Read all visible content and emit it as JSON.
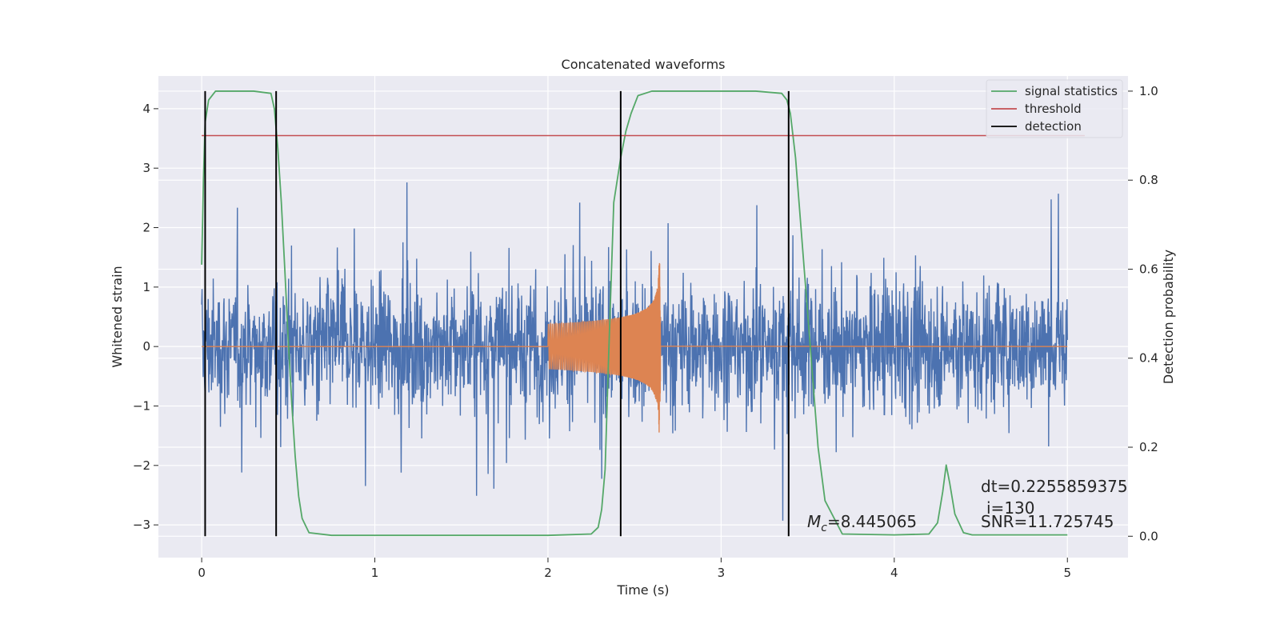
{
  "chart_data": {
    "type": "line",
    "title": "Concatenated waveforms",
    "xlabel": "Time (s)",
    "ylabel": "Whitened strain",
    "y2label": "Detection probability",
    "xlim": [
      -0.25,
      5.35
    ],
    "ylim": [
      -3.55,
      4.55
    ],
    "y2lim": [
      -0.048,
      1.034
    ],
    "xticks": [
      0,
      1,
      2,
      3,
      4,
      5
    ],
    "xtick_labels": [
      "0",
      "1",
      "2",
      "3",
      "4",
      "5"
    ],
    "yticks": [
      -3,
      -2,
      -1,
      0,
      1,
      2,
      3,
      4
    ],
    "ytick_labels": [
      "−3",
      "−2",
      "−1",
      "0",
      "1",
      "2",
      "3",
      "4"
    ],
    "y2ticks": [
      0.0,
      0.2,
      0.4,
      0.6,
      0.8,
      1.0
    ],
    "y2tick_labels": [
      "0.0",
      "0.2",
      "0.4",
      "0.6",
      "0.8",
      "1.0"
    ],
    "grid": true,
    "legend_position": "top-right",
    "series": [
      {
        "name": "whitened strain",
        "color": "#4c72b0",
        "axis": "left",
        "x_range": [
          0,
          5
        ],
        "amplitude": 3.3
      },
      {
        "name": "injected waveform",
        "color": "#dd8452",
        "axis": "left",
        "x_range": [
          2.0,
          2.65
        ]
      },
      {
        "name": "signal statistics",
        "color": "#55a868",
        "axis": "right",
        "x": [
          0,
          0.01,
          0.02,
          0.04,
          0.08,
          0.15,
          0.3,
          0.4,
          0.42,
          0.44,
          0.46,
          0.48,
          0.5,
          0.52,
          0.54,
          0.56,
          0.58,
          0.62,
          0.75,
          1.0,
          1.5,
          2.0,
          2.25,
          2.29,
          2.31,
          2.33,
          2.35,
          2.38,
          2.42,
          2.45,
          2.48,
          2.52,
          2.6,
          3.2,
          3.35,
          3.38,
          3.4,
          3.43,
          3.46,
          3.5,
          3.53,
          3.56,
          3.6,
          3.7,
          4.0,
          4.2,
          4.25,
          4.28,
          4.3,
          4.32,
          4.35,
          4.4,
          4.45,
          5.0
        ],
        "y": [
          0.61,
          0.8,
          0.93,
          0.98,
          1.0,
          1.0,
          1.0,
          0.995,
          0.96,
          0.87,
          0.75,
          0.6,
          0.44,
          0.3,
          0.18,
          0.09,
          0.04,
          0.008,
          0.002,
          0.002,
          0.002,
          0.002,
          0.005,
          0.02,
          0.06,
          0.15,
          0.4,
          0.75,
          0.85,
          0.91,
          0.95,
          0.99,
          1.0,
          1.0,
          0.995,
          0.98,
          0.95,
          0.85,
          0.7,
          0.5,
          0.35,
          0.2,
          0.08,
          0.005,
          0.003,
          0.005,
          0.03,
          0.1,
          0.16,
          0.12,
          0.05,
          0.008,
          0.003,
          0.003
        ]
      },
      {
        "name": "threshold",
        "color": "#c44e52",
        "axis": "right",
        "x": [
          0,
          5.1
        ],
        "y": [
          0.9,
          0.9
        ]
      },
      {
        "name": "detection",
        "color": "#000000",
        "axis": "right",
        "x_positions": [
          0.02,
          0.43,
          2.42,
          3.39
        ],
        "y_range": [
          0,
          1
        ]
      }
    ],
    "legend": [
      {
        "label": "signal statistics",
        "color": "#55a868"
      },
      {
        "label": "threshold",
        "color": "#c44e52"
      },
      {
        "label": "detection",
        "color": "#000000"
      }
    ],
    "annotations": [
      {
        "id": "mc",
        "prefix": "M",
        "sub": "c",
        "text": "=8.445065"
      },
      {
        "id": "dt",
        "text": "dt=0.2255859375"
      },
      {
        "id": "i",
        "text": "i=130"
      },
      {
        "id": "snr",
        "text": "SNR=11.725745"
      }
    ]
  },
  "colors": {
    "background": "#eaeaf2",
    "grid": "#ffffff"
  }
}
